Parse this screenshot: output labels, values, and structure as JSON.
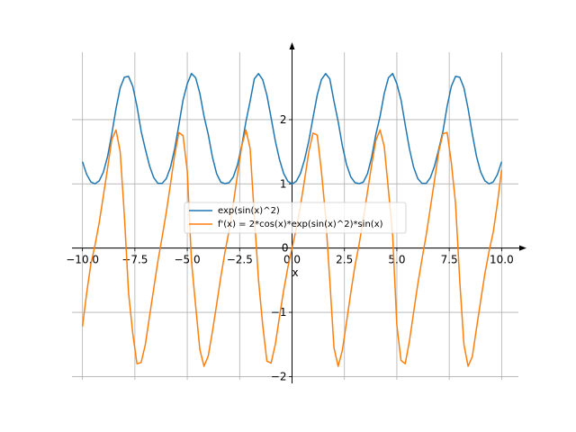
{
  "chart_data": {
    "type": "line",
    "title": "",
    "xlabel": "x",
    "ylabel": "",
    "xlim": [
      -10.5,
      10.8
    ],
    "ylim": [
      -2.05,
      3.05
    ],
    "grid": true,
    "legend_position": "center",
    "x_ticks": [
      -10.0,
      -7.5,
      -5.0,
      -2.5,
      0.0,
      2.5,
      5.0,
      7.5,
      10.0
    ],
    "x_tick_labels": [
      "−10.0",
      "−7.5",
      "−5.0",
      "−2.5",
      "0.0",
      "2.5",
      "5.0",
      "7.5",
      "10.0"
    ],
    "y_ticks": [
      -2,
      -1,
      0,
      1,
      2
    ],
    "y_tick_labels": [
      "−2",
      "−1",
      "0",
      "1",
      "2"
    ],
    "series": [
      {
        "name": "exp(sin(x)^2)",
        "color": "#1f77b4",
        "x": [
          -10.0,
          -9.8,
          -9.6,
          -9.4,
          -9.2,
          -9.0,
          -8.8,
          -8.6,
          -8.4,
          -8.2,
          -8.0,
          -7.8,
          -7.6,
          -7.4,
          -7.2,
          -7.0,
          -6.8,
          -6.6,
          -6.4,
          -6.2,
          -6.0,
          -5.8,
          -5.6,
          -5.4,
          -5.2,
          -5.0,
          -4.8,
          -4.6,
          -4.4,
          -4.2,
          -4.0,
          -3.8,
          -3.6,
          -3.4,
          -3.2,
          -3.0,
          -2.8,
          -2.6,
          -2.4,
          -2.2,
          -2.0,
          -1.8,
          -1.6,
          -1.4,
          -1.2,
          -1.0,
          -0.8,
          -0.6,
          -0.4,
          -0.2,
          0.0,
          0.2,
          0.4,
          0.6,
          0.8,
          1.0,
          1.2,
          1.4,
          1.6,
          1.8,
          2.0,
          2.2,
          2.4,
          2.6,
          2.8,
          3.0,
          3.2,
          3.4,
          3.6,
          3.8,
          4.0,
          4.2,
          4.4,
          4.6,
          4.8,
          5.0,
          5.2,
          5.4,
          5.6,
          5.8,
          6.0,
          6.2,
          6.4,
          6.6,
          6.8,
          7.0,
          7.2,
          7.4,
          7.6,
          7.8,
          8.0,
          8.2,
          8.4,
          8.6,
          8.8,
          9.0,
          9.2,
          9.4,
          9.6,
          9.8,
          10.0
        ],
        "y": [
          1.345,
          1.147,
          1.03,
          1.0,
          1.048,
          1.185,
          1.429,
          1.779,
          2.171,
          2.496,
          2.661,
          2.673,
          2.518,
          2.209,
          1.818,
          1.54,
          1.28,
          1.098,
          1.007,
          1.007,
          1.081,
          1.26,
          1.547,
          1.918,
          2.307,
          2.559,
          2.718,
          2.652,
          2.41,
          2.052,
          1.771,
          1.419,
          1.159,
          1.027,
          1.003,
          1.02,
          1.111,
          1.301,
          1.594,
          1.969,
          2.288,
          2.635,
          2.717,
          2.622,
          2.38,
          2.03,
          1.67,
          1.38,
          1.162,
          1.04,
          1.0,
          1.04,
          1.162,
          1.38,
          1.67,
          2.03,
          2.38,
          2.622,
          2.717,
          2.635,
          2.288,
          1.969,
          1.594,
          1.301,
          1.111,
          1.02,
          1.003,
          1.027,
          1.159,
          1.419,
          1.771,
          2.052,
          2.41,
          2.652,
          2.718,
          2.559,
          2.307,
          1.918,
          1.547,
          1.26,
          1.081,
          1.007,
          1.007,
          1.098,
          1.28,
          1.54,
          1.818,
          2.209,
          2.518,
          2.673,
          2.661,
          2.496,
          2.171,
          1.779,
          1.429,
          1.185,
          1.048,
          1.0,
          1.03,
          1.147,
          1.345
        ]
      },
      {
        "name": "f'(x) = 2*cos(x)*exp(sin(x)^2)*sin(x)",
        "color": "#ff7f0e",
        "x": [
          -10.0,
          -9.8,
          -9.6,
          -9.4,
          -9.2,
          -9.0,
          -8.8,
          -8.6,
          -8.4,
          -8.2,
          -8.0,
          -7.8,
          -7.6,
          -7.4,
          -7.2,
          -7.0,
          -6.8,
          -6.6,
          -6.4,
          -6.2,
          -6.0,
          -5.8,
          -5.6,
          -5.4,
          -5.2,
          -5.0,
          -4.8,
          -4.6,
          -4.4,
          -4.2,
          -4.0,
          -3.8,
          -3.6,
          -3.4,
          -3.2,
          -3.0,
          -2.8,
          -2.6,
          -2.4,
          -2.2,
          -2.0,
          -1.8,
          -1.6,
          -1.4,
          -1.2,
          -1.0,
          -0.8,
          -0.6,
          -0.4,
          -0.2,
          0.0,
          0.2,
          0.4,
          0.6,
          0.8,
          1.0,
          1.2,
          1.4,
          1.6,
          1.8,
          2.0,
          2.2,
          2.4,
          2.6,
          2.8,
          3.0,
          3.2,
          3.4,
          3.6,
          3.8,
          4.0,
          4.2,
          4.4,
          4.6,
          4.8,
          5.0,
          5.2,
          5.4,
          5.6,
          5.8,
          6.0,
          6.2,
          6.4,
          6.6,
          6.8,
          7.0,
          7.2,
          7.4,
          7.6,
          7.8,
          8.0,
          8.2,
          8.4,
          8.6,
          8.8,
          9.0,
          9.2,
          9.4,
          9.6,
          9.8,
          10.0
        ],
        "y": [
          -1.22,
          -0.7,
          -0.25,
          0.05,
          0.4,
          0.82,
          1.25,
          1.69,
          1.84,
          1.5,
          0.5,
          -0.7,
          -1.33,
          -1.8,
          -1.78,
          -1.5,
          -1.06,
          -0.63,
          -0.2,
          0.17,
          0.56,
          1.0,
          1.45,
          1.8,
          1.75,
          1.2,
          -0.2,
          -0.9,
          -1.58,
          -1.84,
          -1.68,
          -1.3,
          -0.88,
          -0.45,
          -0.06,
          0.28,
          0.7,
          1.15,
          1.59,
          1.84,
          1.55,
          0.5,
          -0.5,
          -1.2,
          -1.76,
          -1.79,
          -1.5,
          -1.07,
          -0.66,
          -0.3,
          0.0,
          0.3,
          0.66,
          1.07,
          1.5,
          1.79,
          1.76,
          1.2,
          0.5,
          -0.5,
          -1.55,
          -1.84,
          -1.59,
          -1.15,
          -0.7,
          -0.28,
          0.06,
          0.45,
          0.88,
          1.3,
          1.68,
          1.84,
          1.58,
          0.9,
          0.2,
          -1.2,
          -1.75,
          -1.8,
          -1.45,
          -1.0,
          -0.56,
          -0.17,
          0.2,
          0.63,
          1.06,
          1.5,
          1.78,
          1.8,
          1.33,
          0.7,
          -0.5,
          -1.5,
          -1.84,
          -1.69,
          -1.25,
          -0.82,
          -0.4,
          -0.05,
          0.25,
          0.7,
          1.22
        ]
      }
    ]
  }
}
